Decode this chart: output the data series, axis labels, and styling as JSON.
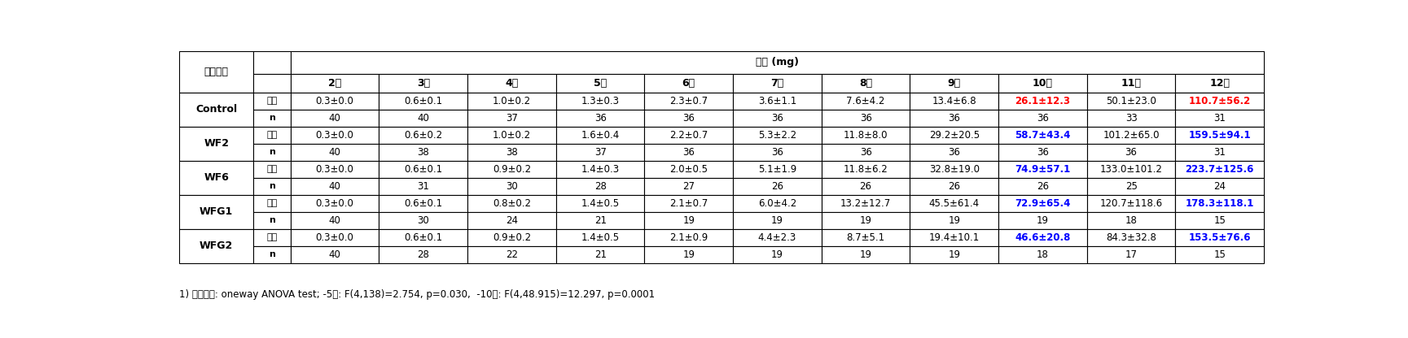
{
  "title_span": "체중 (mg)",
  "col_headers": [
    "2령",
    "3령",
    "4령",
    "5령",
    "6령",
    "7령",
    "8령",
    "9령",
    "10령",
    "11령",
    "12령"
  ],
  "row_groups": [
    "Control",
    "WF2",
    "WF6",
    "WFG1",
    "WFG2"
  ],
  "mean_label": "평균",
  "n_label": "n",
  "data": {
    "Control": {
      "mean": [
        "0.3±0.0",
        "0.6±0.1",
        "1.0±0.2",
        "1.3±0.3",
        "2.3±0.7",
        "3.6±1.1",
        "7.6±4.2",
        "13.4±6.8",
        "26.1±12.3",
        "50.1±23.0",
        "110.7±56.2"
      ],
      "n": [
        "40",
        "40",
        "37",
        "36",
        "36",
        "36",
        "36",
        "36",
        "36",
        "33",
        "31"
      ],
      "highlight_mean": [
        8,
        10
      ],
      "highlight_color_mean": [
        "#FF0000",
        "#FF0000"
      ]
    },
    "WF2": {
      "mean": [
        "0.3±0.0",
        "0.6±0.2",
        "1.0±0.2",
        "1.6±0.4",
        "2.2±0.7",
        "5.3±2.2",
        "11.8±8.0",
        "29.2±20.5",
        "58.7±43.4",
        "101.2±65.0",
        "159.5±94.1"
      ],
      "n": [
        "40",
        "38",
        "38",
        "37",
        "36",
        "36",
        "36",
        "36",
        "36",
        "36",
        "31"
      ],
      "highlight_mean": [
        8,
        10
      ],
      "highlight_color_mean": [
        "#0000FF",
        "#0000FF"
      ]
    },
    "WF6": {
      "mean": [
        "0.3±0.0",
        "0.6±0.1",
        "0.9±0.2",
        "1.4±0.3",
        "2.0±0.5",
        "5.1±1.9",
        "11.8±6.2",
        "32.8±19.0",
        "74.9±57.1",
        "133.0±101.2",
        "223.7±125.6"
      ],
      "n": [
        "40",
        "31",
        "30",
        "28",
        "27",
        "26",
        "26",
        "26",
        "26",
        "25",
        "24"
      ],
      "highlight_mean": [
        8,
        10
      ],
      "highlight_color_mean": [
        "#0000FF",
        "#0000FF"
      ]
    },
    "WFG1": {
      "mean": [
        "0.3±0.0",
        "0.6±0.1",
        "0.8±0.2",
        "1.4±0.5",
        "2.1±0.7",
        "6.0±4.2",
        "13.2±12.7",
        "45.5±61.4",
        "72.9±65.4",
        "120.7±118.6",
        "178.3±118.1"
      ],
      "n": [
        "40",
        "30",
        "24",
        "21",
        "19",
        "19",
        "19",
        "19",
        "19",
        "18",
        "15"
      ],
      "highlight_mean": [
        8,
        10
      ],
      "highlight_color_mean": [
        "#0000FF",
        "#0000FF"
      ]
    },
    "WFG2": {
      "mean": [
        "0.3±0.0",
        "0.6±0.1",
        "0.9±0.2",
        "1.4±0.5",
        "2.1±0.9",
        "4.4±2.3",
        "8.7±5.1",
        "19.4±10.1",
        "46.6±20.8",
        "84.3±32.8",
        "153.5±76.6"
      ],
      "n": [
        "40",
        "28",
        "22",
        "21",
        "19",
        "19",
        "19",
        "19",
        "18",
        "17",
        "15"
      ],
      "highlight_mean": [
        8,
        10
      ],
      "highlight_color_mean": [
        "#0000FF",
        "#0000FF"
      ]
    }
  },
  "footnote": "1) 통계분석: oneway ANOVA test; -5령: F(4,138)=2.754, p=0.030,  -10령: F(4,48.915)=12.297, p=0.0001",
  "inong_label": "인공사료",
  "bg_header": "#FFFFFF",
  "bg_data": "#FFFFFF",
  "text_color": "#000000",
  "border_color": "#000000"
}
